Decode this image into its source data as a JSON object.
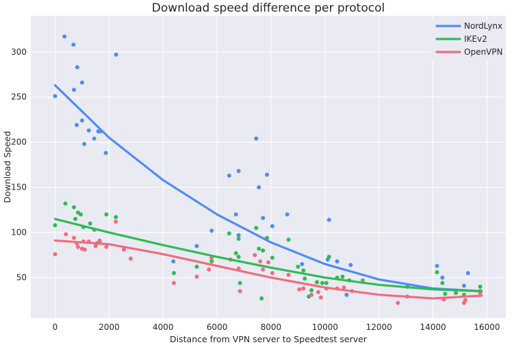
{
  "chart_data": {
    "type": "scatter",
    "title": "Download speed difference per protocol",
    "xlabel": "Distance from VPN server to Speedtest server",
    "ylabel": "Download Speed",
    "xlim": [
      -900,
      16700
    ],
    "ylim": [
      5,
      340
    ],
    "xticks": [
      0,
      2000,
      4000,
      6000,
      8000,
      10000,
      12000,
      14000,
      16000
    ],
    "yticks": [
      50,
      100,
      150,
      200,
      250,
      300
    ],
    "grid": true,
    "legend_position": "top-right",
    "series": [
      {
        "name": "NordLynx",
        "color": "#4c8df6",
        "fit": {
          "x": [
            0,
            2000,
            4000,
            6000,
            8000,
            10000,
            12000,
            14000,
            15800
          ],
          "y": [
            263,
            205,
            158,
            120,
            89,
            65,
            48,
            38,
            35
          ]
        },
        "points": [
          [
            0,
            251
          ],
          [
            350,
            317
          ],
          [
            680,
            308
          ],
          [
            700,
            258
          ],
          [
            800,
            219
          ],
          [
            820,
            283
          ],
          [
            1000,
            266
          ],
          [
            1000,
            224
          ],
          [
            1080,
            198
          ],
          [
            1250,
            213
          ],
          [
            1450,
            204
          ],
          [
            1600,
            212
          ],
          [
            1680,
            212
          ],
          [
            1880,
            188
          ],
          [
            2260,
            297
          ],
          [
            4380,
            68
          ],
          [
            5250,
            85
          ],
          [
            5800,
            102
          ],
          [
            6450,
            163
          ],
          [
            6700,
            120
          ],
          [
            6800,
            168
          ],
          [
            6800,
            97
          ],
          [
            7450,
            204
          ],
          [
            7550,
            150
          ],
          [
            7700,
            116
          ],
          [
            7850,
            164
          ],
          [
            8050,
            107
          ],
          [
            8600,
            120
          ],
          [
            9150,
            65
          ],
          [
            10100,
            70
          ],
          [
            10150,
            114
          ],
          [
            10450,
            68
          ],
          [
            10800,
            31
          ],
          [
            10950,
            64
          ],
          [
            14150,
            63
          ],
          [
            14350,
            50
          ],
          [
            15150,
            41
          ],
          [
            15300,
            55
          ],
          [
            15750,
            35
          ]
        ]
      },
      {
        "name": "IKEv2",
        "color": "#2fba55",
        "fit": {
          "x": [
            0,
            2000,
            4000,
            6000,
            8000,
            10000,
            12000,
            14000,
            15800
          ],
          "y": [
            115,
            100,
            86,
            73,
            61,
            50,
            42,
            37,
            35
          ]
        },
        "points": [
          [
            0,
            108
          ],
          [
            380,
            132
          ],
          [
            700,
            128
          ],
          [
            750,
            115
          ],
          [
            850,
            122
          ],
          [
            950,
            120
          ],
          [
            1050,
            106
          ],
          [
            1300,
            110
          ],
          [
            1450,
            103
          ],
          [
            1550,
            88
          ],
          [
            1650,
            89
          ],
          [
            1900,
            120
          ],
          [
            2250,
            117
          ],
          [
            4400,
            55
          ],
          [
            5250,
            62
          ],
          [
            5800,
            68
          ],
          [
            6450,
            99
          ],
          [
            6700,
            77
          ],
          [
            6800,
            93
          ],
          [
            6800,
            73
          ],
          [
            6850,
            44
          ],
          [
            7450,
            105
          ],
          [
            7550,
            82
          ],
          [
            7650,
            27
          ],
          [
            7700,
            80
          ],
          [
            7850,
            94
          ],
          [
            8050,
            72
          ],
          [
            8650,
            92
          ],
          [
            9000,
            62
          ],
          [
            9200,
            58
          ],
          [
            9250,
            49
          ],
          [
            9400,
            29
          ],
          [
            9500,
            36
          ],
          [
            9700,
            45
          ],
          [
            9900,
            44
          ],
          [
            10050,
            44
          ],
          [
            10150,
            73
          ],
          [
            10450,
            50
          ],
          [
            10650,
            51
          ],
          [
            10900,
            47
          ],
          [
            11400,
            47
          ],
          [
            13050,
            40
          ],
          [
            14150,
            56
          ],
          [
            14350,
            44
          ],
          [
            14450,
            32
          ],
          [
            14850,
            33
          ],
          [
            15150,
            31
          ],
          [
            15750,
            40
          ]
        ]
      },
      {
        "name": "OpenVPN",
        "color": "#f06c7e",
        "fit": {
          "x": [
            0,
            2000,
            4000,
            6000,
            8000,
            10000,
            12000,
            14000,
            15800
          ],
          "y": [
            91,
            87,
            76,
            63,
            50,
            39,
            31,
            27,
            30
          ]
        },
        "points": [
          [
            0,
            76
          ],
          [
            400,
            98
          ],
          [
            700,
            94
          ],
          [
            800,
            88
          ],
          [
            850,
            84
          ],
          [
            1000,
            82
          ],
          [
            1050,
            90
          ],
          [
            1100,
            81
          ],
          [
            1250,
            90
          ],
          [
            1500,
            85
          ],
          [
            1650,
            91
          ],
          [
            1900,
            84
          ],
          [
            2250,
            112
          ],
          [
            2550,
            81
          ],
          [
            2800,
            71
          ],
          [
            4400,
            44
          ],
          [
            5250,
            51
          ],
          [
            5700,
            59
          ],
          [
            5800,
            72
          ],
          [
            6500,
            70
          ],
          [
            6800,
            60
          ],
          [
            6850,
            35
          ],
          [
            7400,
            75
          ],
          [
            7600,
            68
          ],
          [
            7700,
            59
          ],
          [
            7900,
            67
          ],
          [
            8050,
            55
          ],
          [
            8650,
            53
          ],
          [
            9050,
            37
          ],
          [
            9200,
            38
          ],
          [
            9500,
            31
          ],
          [
            9750,
            34
          ],
          [
            9850,
            28
          ],
          [
            10050,
            38
          ],
          [
            10450,
            38
          ],
          [
            10700,
            39
          ],
          [
            11000,
            35
          ],
          [
            11400,
            45
          ],
          [
            12700,
            22
          ],
          [
            13050,
            29
          ],
          [
            14400,
            26
          ],
          [
            15150,
            22
          ],
          [
            15200,
            25
          ],
          [
            15750,
            33
          ]
        ]
      }
    ]
  }
}
